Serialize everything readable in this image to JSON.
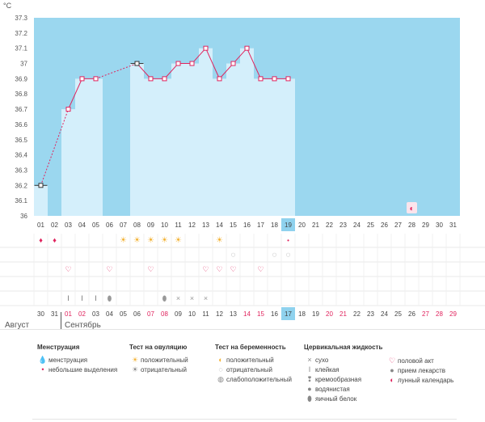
{
  "chart_data": {
    "type": "bar",
    "title": "",
    "ylabel": "°C",
    "ylim": [
      36.0,
      37.3
    ],
    "y_ticks": [
      "36",
      "36.1",
      "36.2",
      "36.3",
      "36.4",
      "36.5",
      "36.6",
      "36.7",
      "36.8",
      "36.9",
      "37",
      "37.1",
      "37.2",
      "37.3"
    ],
    "cycle_days": [
      "01",
      "02",
      "03",
      "04",
      "05",
      "06",
      "07",
      "08",
      "09",
      "10",
      "11",
      "12",
      "13",
      "14",
      "15",
      "16",
      "17",
      "18",
      "19",
      "20",
      "21",
      "22",
      "23",
      "24",
      "25",
      "26",
      "27",
      "28",
      "29",
      "30",
      "31"
    ],
    "current_cycle_day": "19",
    "temperatures": [
      36.2,
      null,
      36.7,
      36.9,
      36.9,
      null,
      null,
      37.0,
      36.9,
      36.9,
      37.0,
      37.0,
      37.1,
      36.9,
      37.0,
      37.1,
      36.9,
      36.9,
      36.9,
      null,
      null,
      null,
      null,
      null,
      null,
      null,
      null,
      null,
      null,
      null,
      null
    ],
    "dashed_segments": [
      [
        1,
        3
      ],
      [
        5,
        8
      ]
    ],
    "highlighted_points": [
      1,
      8
    ],
    "calendar_dates": [
      "30",
      "31",
      "01",
      "02",
      "03",
      "04",
      "05",
      "06",
      "07",
      "08",
      "09",
      "10",
      "11",
      "12",
      "13",
      "14",
      "15",
      "16",
      "17",
      "18",
      "19",
      "20",
      "21",
      "22",
      "23",
      "24",
      "25",
      "26",
      "27",
      "28",
      "29"
    ],
    "calendar_red_dates": [
      3,
      4,
      9,
      10,
      16,
      17,
      22,
      23,
      29,
      30,
      31
    ],
    "today_date": "17",
    "markers": {
      "menstruation": [
        1,
        2
      ],
      "light_discharge": [
        19
      ],
      "ovulation_positive": [
        7,
        8,
        9,
        10,
        11,
        14
      ],
      "pregnancy_negative": [
        15,
        18,
        19
      ],
      "intercourse": [
        3,
        6,
        9,
        13,
        14,
        15,
        17
      ],
      "sticky": [
        3,
        4,
        5
      ],
      "egg_white": [
        6,
        10
      ],
      "dry": [
        11,
        12,
        13
      ],
      "lunar_calendar": [
        28
      ]
    }
  },
  "months": {
    "prev": "Август",
    "current": "Сентябрь"
  },
  "legend": {
    "menstruation": {
      "title": "Менструация",
      "items": [
        "менструация",
        "небольшие выделения"
      ]
    },
    "ovulation": {
      "title": "Тест на овуляцию",
      "items": [
        "положительный",
        "отрицательный"
      ]
    },
    "pregnancy": {
      "title": "Тест на беременность",
      "items": [
        "положительный",
        "отрицательный",
        "слабоположительный"
      ]
    },
    "cervical": {
      "title": "Цервикальная жидкость",
      "items": [
        "сухо",
        "клейкая",
        "кремообразная",
        "водянистая",
        "яичный белок"
      ]
    },
    "other": {
      "items": [
        "половой акт",
        "прием лекарств",
        "лунный календарь"
      ]
    }
  },
  "colors": {
    "band": "#9bd7ef",
    "bar": "#d4effb",
    "line": "#e0245e",
    "today": "#8fd2ee",
    "red": "#e0245e"
  }
}
